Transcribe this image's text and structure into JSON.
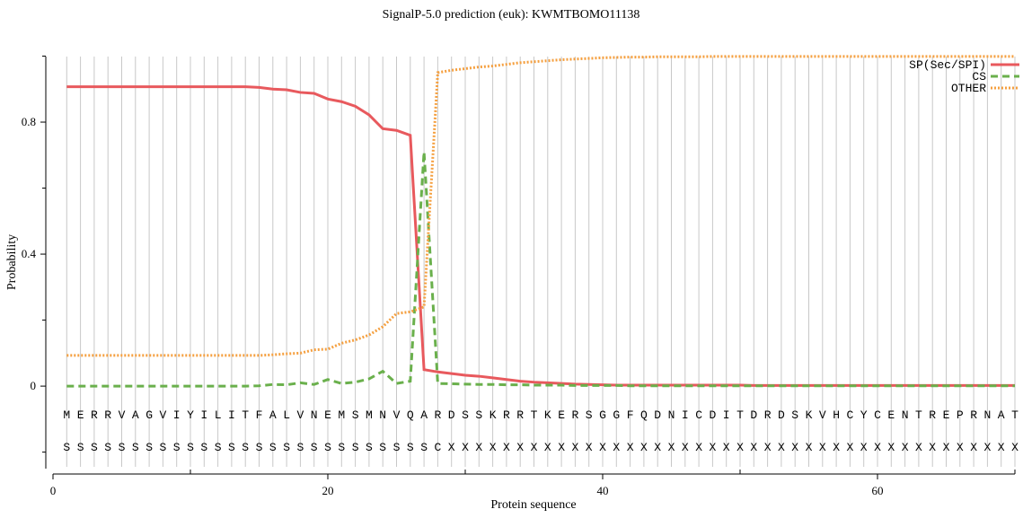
{
  "chart_data": {
    "type": "line",
    "title": "SignalP-5.0 prediction (euk):  KWMTBOMO11138",
    "xlabel": "Protein sequence",
    "ylabel": "Probability",
    "x": [
      1,
      2,
      3,
      4,
      5,
      6,
      7,
      8,
      9,
      10,
      11,
      12,
      13,
      14,
      15,
      16,
      17,
      18,
      19,
      20,
      21,
      22,
      23,
      24,
      25,
      26,
      27,
      28,
      29,
      30,
      31,
      32,
      33,
      34,
      35,
      36,
      37,
      38,
      39,
      40,
      41,
      42,
      43,
      44,
      45,
      46,
      47,
      48,
      49,
      50,
      51,
      52,
      53,
      54,
      55,
      56,
      57,
      58,
      59,
      60,
      61,
      62,
      63,
      64,
      65,
      66,
      67,
      68,
      69,
      70
    ],
    "sequence": [
      "M",
      "E",
      "R",
      "R",
      "V",
      "A",
      "G",
      "V",
      "I",
      "Y",
      "I",
      "L",
      "I",
      "T",
      "F",
      "A",
      "L",
      "V",
      "N",
      "E",
      "M",
      "S",
      "M",
      "N",
      "V",
      "Q",
      "A",
      "R",
      "D",
      "S",
      "S",
      "K",
      "R",
      "R",
      "T",
      "K",
      "E",
      "R",
      "S",
      "G",
      "G",
      "F",
      "Q",
      "D",
      "N",
      "I",
      "C",
      "D",
      "I",
      "T",
      "D",
      "R",
      "D",
      "S",
      "K",
      "V",
      "H",
      "C",
      "Y",
      "C",
      "E",
      "N",
      "T",
      "R",
      "E",
      "P",
      "R",
      "N",
      "A",
      "T"
    ],
    "labels": [
      "S",
      "S",
      "S",
      "S",
      "S",
      "S",
      "S",
      "S",
      "S",
      "S",
      "S",
      "S",
      "S",
      "S",
      "S",
      "S",
      "S",
      "S",
      "S",
      "S",
      "S",
      "S",
      "S",
      "S",
      "S",
      "S",
      "S",
      "C",
      "X",
      "X",
      "X",
      "X",
      "X",
      "X",
      "X",
      "X",
      "X",
      "X",
      "X",
      "X",
      "X",
      "X",
      "X",
      "X",
      "X",
      "X",
      "X",
      "X",
      "X",
      "X",
      "X",
      "X",
      "X",
      "X",
      "X",
      "X",
      "X",
      "X",
      "X",
      "X",
      "X",
      "X",
      "X",
      "X",
      "X",
      "X",
      "X",
      "X",
      "X",
      "X"
    ],
    "series": [
      {
        "name": "SP(Sec/SPI)",
        "color": "#e8595d",
        "style": "solid",
        "values": [
          0.907,
          0.907,
          0.907,
          0.907,
          0.907,
          0.907,
          0.907,
          0.907,
          0.907,
          0.907,
          0.907,
          0.907,
          0.907,
          0.907,
          0.905,
          0.9,
          0.898,
          0.89,
          0.887,
          0.87,
          0.862,
          0.848,
          0.822,
          0.78,
          0.775,
          0.76,
          0.05,
          0.043,
          0.038,
          0.033,
          0.03,
          0.025,
          0.02,
          0.015,
          0.012,
          0.01,
          0.008,
          0.006,
          0.005,
          0.004,
          0.003,
          0.003,
          0.003,
          0.003,
          0.003,
          0.003,
          0.003,
          0.003,
          0.003,
          0.003,
          0.002,
          0.002,
          0.002,
          0.002,
          0.002,
          0.002,
          0.002,
          0.002,
          0.002,
          0.002,
          0.002,
          0.002,
          0.002,
          0.002,
          0.002,
          0.002,
          0.002,
          0.002,
          0.002,
          0.002
        ]
      },
      {
        "name": "CS",
        "color": "#6ab04c",
        "style": "dashed",
        "values": [
          0,
          0,
          0,
          0,
          0,
          0,
          0,
          0,
          0,
          0,
          0,
          0,
          0,
          0,
          0.001,
          0.005,
          0.004,
          0.01,
          0.005,
          0.02,
          0.008,
          0.012,
          0.022,
          0.045,
          0.008,
          0.015,
          0.71,
          0.008,
          0.007,
          0.006,
          0.005,
          0.005,
          0.004,
          0.004,
          0.003,
          0.003,
          0.003,
          0.002,
          0.002,
          0.002,
          0.002,
          0.001,
          0.001,
          0.001,
          0.001,
          0.001,
          0.001,
          0.001,
          0.001,
          0.001,
          0.001,
          0.001,
          0.001,
          0.001,
          0.001,
          0.001,
          0.001,
          0.001,
          0.001,
          0.001,
          0.001,
          0.001,
          0.001,
          0.001,
          0.001,
          0.001,
          0.001,
          0.001,
          0.001,
          0.001
        ]
      },
      {
        "name": "OTHER",
        "color": "#f5a040",
        "style": "dotted",
        "values": [
          0.093,
          0.093,
          0.093,
          0.093,
          0.093,
          0.093,
          0.093,
          0.093,
          0.093,
          0.093,
          0.093,
          0.093,
          0.093,
          0.093,
          0.093,
          0.095,
          0.098,
          0.1,
          0.11,
          0.112,
          0.13,
          0.14,
          0.155,
          0.18,
          0.22,
          0.225,
          0.24,
          0.95,
          0.957,
          0.962,
          0.967,
          0.97,
          0.975,
          0.98,
          0.983,
          0.986,
          0.989,
          0.991,
          0.993,
          0.995,
          0.996,
          0.997,
          0.997,
          0.998,
          0.998,
          0.998,
          0.998,
          0.999,
          0.999,
          0.999,
          0.999,
          0.999,
          0.999,
          0.999,
          0.999,
          0.999,
          0.999,
          0.999,
          0.999,
          0.999,
          0.999,
          0.999,
          0.999,
          0.999,
          0.999,
          0.999,
          0.999,
          0.999,
          0.999,
          0.999
        ]
      }
    ],
    "xlim": [
      0,
      70
    ],
    "xticks": [
      0,
      20,
      40,
      60
    ],
    "xminorticks": [
      10,
      30,
      50,
      70
    ],
    "ylim": [
      -0.25,
      1
    ],
    "yticks": [
      0,
      0.4,
      0.8
    ],
    "yminorticks": [
      -0.2,
      0.2,
      0.6,
      1
    ],
    "grid": true,
    "legend": "upper right"
  }
}
